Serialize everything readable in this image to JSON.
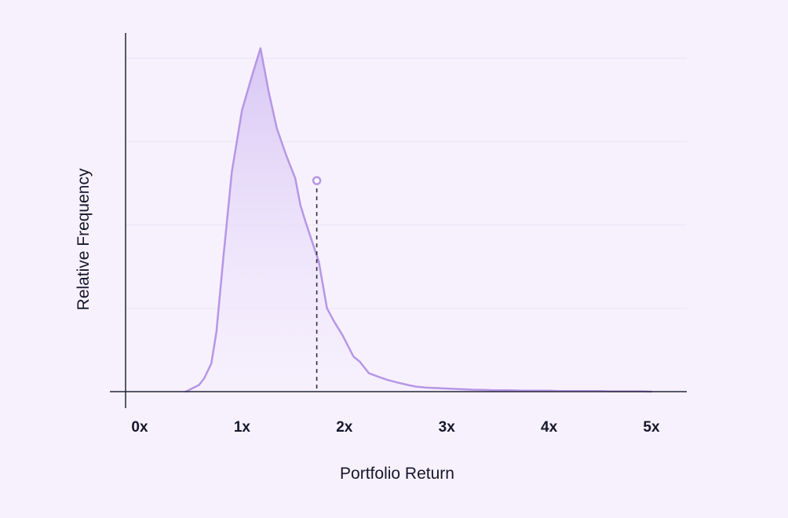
{
  "colors": {
    "background": "#F7F1FD",
    "line": "#B696E6",
    "fill_top": "#D6C4F4",
    "fill_bottom": "#F5EEFD",
    "axis": "#23263A",
    "grid": "#EDE5FA",
    "marker_line": "#2C2C3A"
  },
  "chart_data": {
    "type": "area",
    "title": "",
    "xlabel": "Portfolio Return",
    "ylabel": "Relative Frequency",
    "xlim": [
      0,
      5.3
    ],
    "ylim": [
      0,
      1.05
    ],
    "x_ticks": [
      {
        "value": 0,
        "label": "0x"
      },
      {
        "value": 1,
        "label": "1x"
      },
      {
        "value": 2,
        "label": "2x"
      },
      {
        "value": 3,
        "label": "3x"
      },
      {
        "value": 4,
        "label": "4x"
      },
      {
        "value": 5,
        "label": "5x"
      }
    ],
    "y_tick_labels": false,
    "grid": "horizontal",
    "grid_values": [
      0.25,
      0.5,
      0.75,
      1.0
    ],
    "series": [
      {
        "x": [
          0.45,
          0.58,
          0.63,
          0.7,
          0.75,
          0.82,
          0.9,
          1.0,
          1.1,
          1.18,
          1.26,
          1.34,
          1.43,
          1.52,
          1.57,
          1.62,
          1.75,
          1.83,
          1.9,
          1.98,
          2.09,
          2.15,
          2.24,
          2.33,
          2.42,
          2.55,
          2.62,
          2.7,
          2.8,
          2.95,
          3.1,
          3.25,
          3.38,
          3.45,
          3.6,
          3.75,
          3.88,
          4.0,
          4.1,
          4.18,
          4.3,
          4.4,
          4.5,
          4.6,
          4.7,
          4.8,
          4.9,
          5.0
        ],
        "y": [
          0.0,
          0.02,
          0.04,
          0.085,
          0.18,
          0.41,
          0.66,
          0.845,
          0.95,
          1.03,
          0.9,
          0.79,
          0.71,
          0.64,
          0.56,
          0.51,
          0.39,
          0.25,
          0.21,
          0.17,
          0.105,
          0.09,
          0.055,
          0.045,
          0.035,
          0.025,
          0.02,
          0.015,
          0.012,
          0.01,
          0.008,
          0.006,
          0.005,
          0.004,
          0.004,
          0.003,
          0.003,
          0.003,
          0.002,
          0.002,
          0.002,
          0.002,
          0.002,
          0.001,
          0.001,
          0.001,
          0.001,
          0.0
        ]
      }
    ],
    "marker": {
      "x": 1.73,
      "y": 0.633
    }
  }
}
